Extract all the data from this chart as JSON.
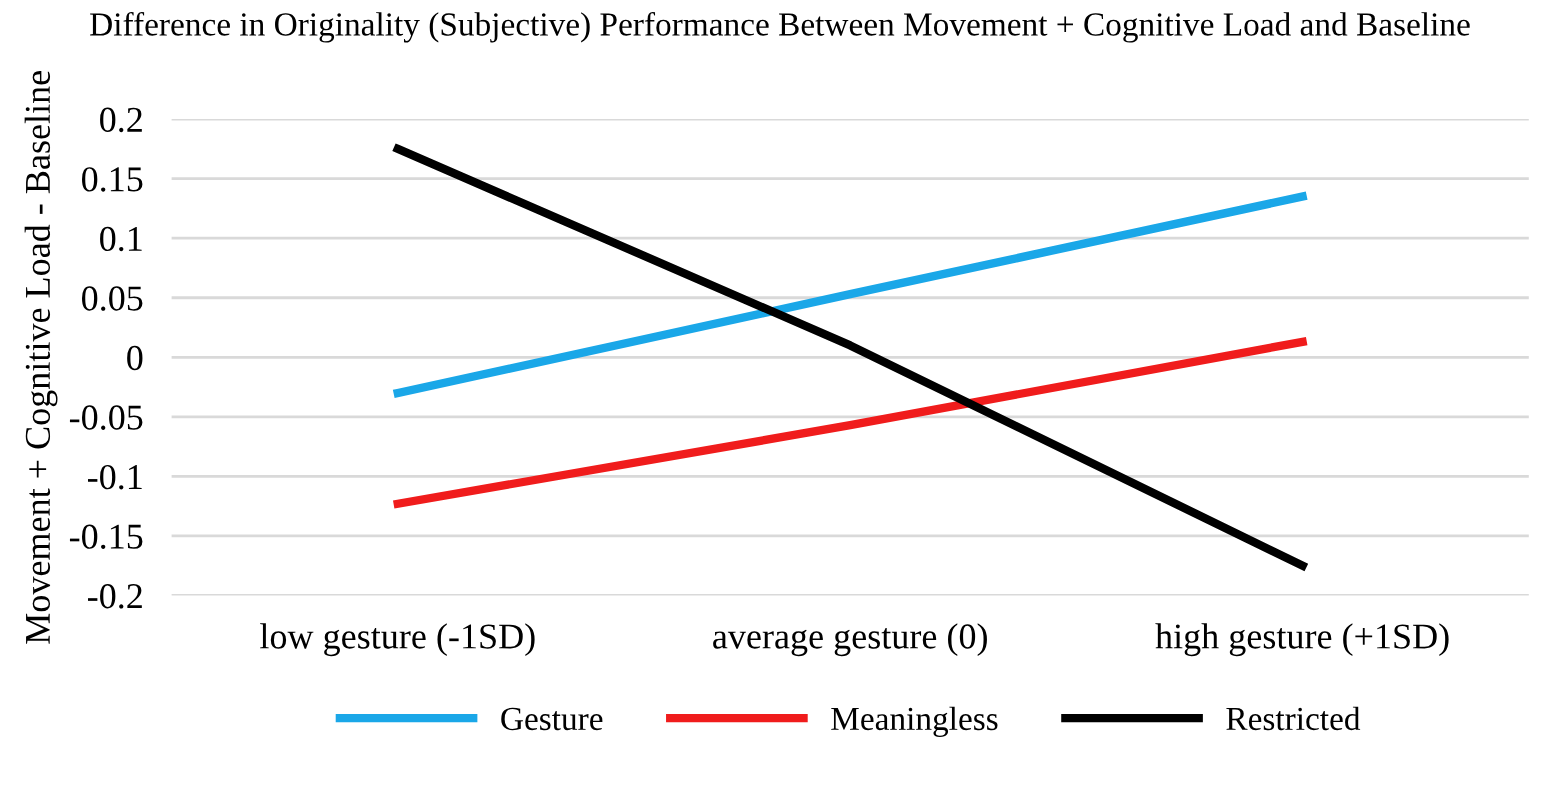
{
  "chart_data": {
    "type": "line",
    "title": "Difference in Originality (Subjective) Performance Between Movement + Cognitive Load and Baseline",
    "ylabel": "Movement + Cognitive Load - Baseline",
    "categories": [
      "low gesture (-1SD)",
      "average gesture (0)",
      "high gesture (+1SD)"
    ],
    "series": [
      {
        "name": "Gesture",
        "color": "#1aa7e8",
        "values": [
          -0.03,
          0.053,
          0.135
        ]
      },
      {
        "name": "Meaningless",
        "color": "#f01c1c",
        "values": [
          -0.123,
          -0.057,
          0.013
        ]
      },
      {
        "name": "Restricted",
        "color": "#000000",
        "values": [
          0.175,
          0.01,
          -0.175
        ]
      }
    ],
    "ylim": [
      -0.2,
      0.2
    ],
    "yticks": [
      -0.2,
      -0.15,
      -0.1,
      -0.05,
      0,
      0.05,
      0.1,
      0.15,
      0.2
    ],
    "grid": "y",
    "legend": "bottom",
    "marker": "none",
    "line_style": "solid"
  }
}
